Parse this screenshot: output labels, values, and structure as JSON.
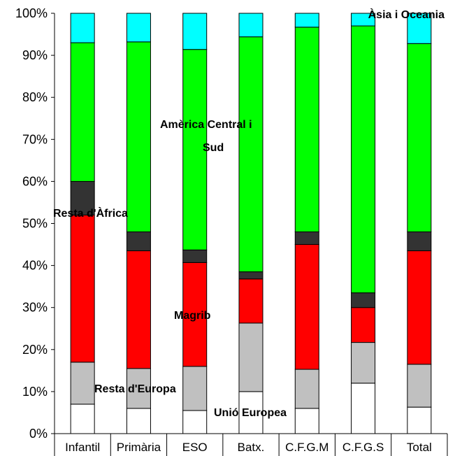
{
  "chart_data": {
    "type": "bar",
    "stacked": true,
    "percent_stacked": true,
    "categories": [
      "Infantil",
      "Primària",
      "ESO",
      "Batx.",
      "C.F.G.M",
      "C.F.G.S",
      "Total"
    ],
    "series": [
      {
        "color": "#ffffff",
        "values": [
          7,
          6,
          5.5,
          10,
          6,
          12,
          6.3
        ]
      },
      {
        "color": "#c0c0c0",
        "values": [
          10,
          9.5,
          10.5,
          16.3,
          9.3,
          9.7,
          10.2
        ]
      },
      {
        "color": "#ff0000",
        "values": [
          35,
          28,
          24.7,
          10.5,
          29.7,
          8.3,
          27
        ]
      },
      {
        "color": "#333333",
        "values": [
          8,
          4.5,
          3,
          1.7,
          3,
          3.5,
          4.5
        ]
      },
      {
        "color": "#00ff00",
        "values": [
          33,
          45.2,
          47.7,
          55.9,
          48.7,
          63.5,
          44.8
        ]
      },
      {
        "color": "#00ffff",
        "values": [
          7,
          6.8,
          8.6,
          5.6,
          3.3,
          3,
          7.2
        ]
      }
    ],
    "ylim": [
      0,
      100
    ],
    "y_ticks": [
      "0%",
      "10%",
      "20%",
      "30%",
      "40%",
      "50%",
      "60%",
      "70%",
      "80%",
      "90%",
      "100%"
    ],
    "grid": false,
    "annotations": [
      {
        "text": "Àsia i Oceania",
        "series_index": 5
      },
      {
        "text": "Amèrica Central i",
        "series_index": 4
      },
      {
        "text": "Sud",
        "series_index": 4
      },
      {
        "text": "Resta d'Àfrica",
        "series_index": 3
      },
      {
        "text": "Magrib",
        "series_index": 2
      },
      {
        "text": "Resta d'Europa",
        "series_index": 1
      },
      {
        "text": "Unió Europea",
        "series_index": 0
      }
    ]
  }
}
